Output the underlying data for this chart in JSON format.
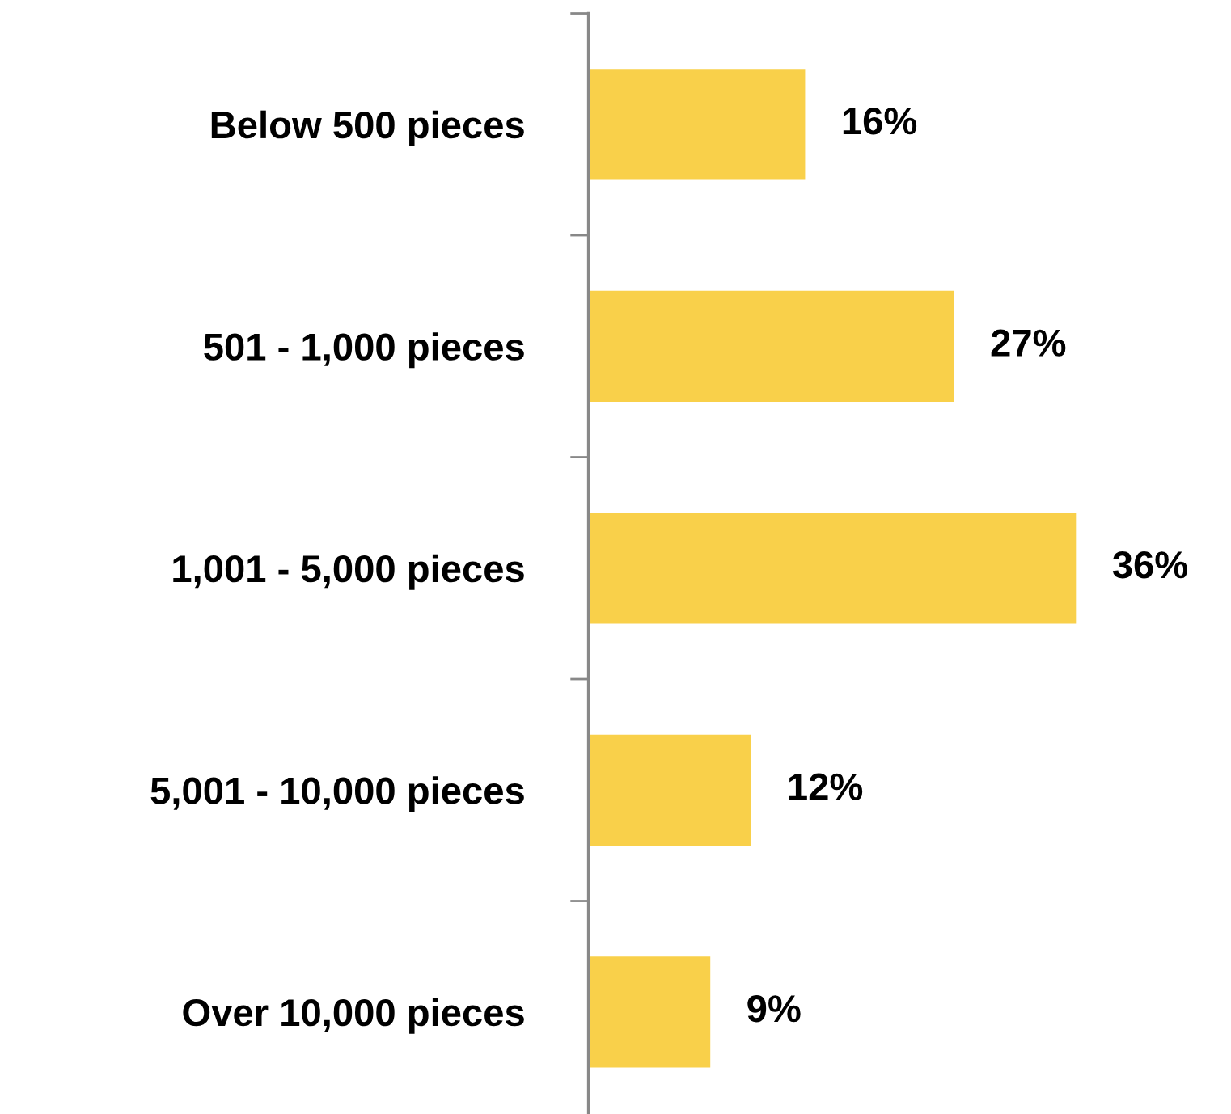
{
  "chart_data": {
    "type": "bar",
    "orientation": "horizontal",
    "categories": [
      "Below 500 pieces",
      "501 - 1,000 pieces",
      "1,001 - 5,000 pieces",
      "5,001 - 10,000 pieces",
      "Over 10,000 pieces"
    ],
    "values": [
      16,
      27,
      36,
      12,
      9
    ],
    "value_labels": [
      "16%",
      "27%",
      "36%",
      "12%",
      "9%"
    ],
    "color": "#f9d04a",
    "grid": false,
    "legend": false
  }
}
